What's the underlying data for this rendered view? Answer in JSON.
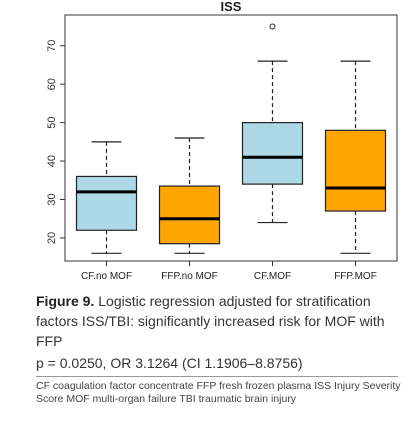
{
  "chart_data": {
    "type": "box",
    "title": "ISS",
    "xlabel": "",
    "ylabel": "",
    "ylim": [
      14,
      78
    ],
    "yticks": [
      20,
      30,
      40,
      50,
      60,
      70
    ],
    "categories": [
      "CF.no MOF",
      "FFP.no MOF",
      "CF.MOF",
      "FFP.MOF"
    ],
    "boxes": [
      {
        "category": "CF.no MOF",
        "min": 16,
        "q1": 22,
        "median": 32,
        "q3": 36,
        "max": 45,
        "outliers": [],
        "color": "#add8e6"
      },
      {
        "category": "FFP.no MOF",
        "min": 16,
        "q1": 18.5,
        "median": 25,
        "q3": 33.5,
        "max": 46,
        "outliers": [],
        "color": "#ffa500"
      },
      {
        "category": "CF.MOF",
        "min": 24,
        "q1": 34,
        "median": 41,
        "q3": 50,
        "max": 66,
        "outliers": [
          75
        ],
        "color": "#add8e6"
      },
      {
        "category": "FFP.MOF",
        "min": 16,
        "q1": 27,
        "median": 33,
        "q3": 48,
        "max": 66,
        "outliers": [],
        "color": "#ffa500"
      }
    ]
  },
  "caption": {
    "label": "Figure 9.",
    "text": " Logistic regression adjusted for stratification factors ISS/TBI: significantly increased risk for MOF with FFP",
    "stats": "p = 0.0250, OR 3.1264 (CI 1.1906–8.8756)"
  },
  "footnote": "CF coagulation factor concentrate FFP fresh frozen plasma ISS Injury Severity Score MOF multi-organ failure TBI traumatic brain injury"
}
